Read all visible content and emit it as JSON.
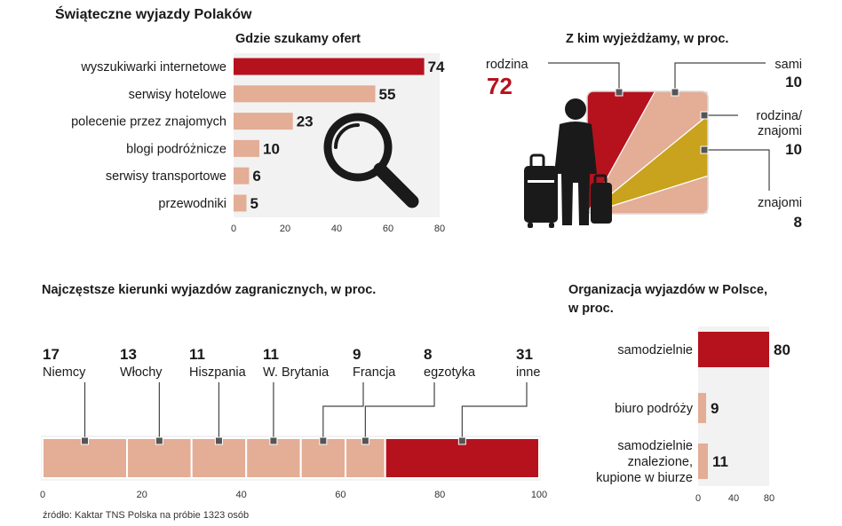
{
  "title": "Świąteczne wyjazdy Polaków",
  "source": "źródło: Kaktar TNS Polska na próbie 1323 osób",
  "colors": {
    "red": "#b5121e",
    "salmon": "#e3ad96",
    "gold": "#c9a21e",
    "panel": "#f2f2f2",
    "dark": "#1a1a1a"
  },
  "icons": [
    "magnifier-icon",
    "traveler-icon",
    "suitcase-icon"
  ],
  "chart_data": [
    {
      "type": "bar",
      "title": "Gdzie szukamy ofert",
      "categories": [
        "wyszukiwarki internetowe",
        "serwisy hotelowe",
        "polecenie przez znajomych",
        "blogi podróżnicze",
        "serwisy transportowe",
        "przewodniki"
      ],
      "values": [
        74,
        55,
        23,
        10,
        6,
        5
      ],
      "value_labels": [
        "74",
        "55",
        "23",
        "10",
        "6",
        "5"
      ],
      "xlim": [
        0,
        80
      ],
      "xticks": [
        "0",
        "20",
        "40",
        "60",
        "80"
      ]
    },
    {
      "type": "pie",
      "title": "Z kim wyjeżdżamy, w proc.",
      "slices": [
        {
          "label": "rodzina",
          "value": 72,
          "display": "72"
        },
        {
          "label": "sami",
          "value": 10,
          "display": "10"
        },
        {
          "label": "rodzina/\nznajomi",
          "value": 10,
          "display": "10"
        },
        {
          "label": "znajomi",
          "value": 8,
          "display": "8"
        }
      ]
    },
    {
      "type": "bar",
      "stacked": true,
      "title": "Najczęstsze kierunki wyjazdów zagranicznych, w proc.",
      "segments": [
        {
          "label": "Niemcy",
          "value": 17,
          "display": "17"
        },
        {
          "label": "Włochy",
          "value": 13,
          "display": "13"
        },
        {
          "label": "Hiszpania",
          "value": 11,
          "display": "11"
        },
        {
          "label": "W. Brytania",
          "value": 11,
          "display": "11"
        },
        {
          "label": "Francja",
          "value": 9,
          "display": "9"
        },
        {
          "label": "egzotyka",
          "value": 8,
          "display": "8"
        },
        {
          "label": "inne",
          "value": 31,
          "display": "31"
        }
      ],
      "xlim": [
        0,
        100
      ],
      "xticks": [
        "0",
        "20",
        "40",
        "60",
        "80",
        "100"
      ]
    },
    {
      "type": "bar",
      "title": "Organizacja wyjazdów w Polsce,\nw proc.",
      "categories": [
        "samodzielnie",
        "biuro podróży",
        "samodzielnie\nznalezione,\nkupione w biurze"
      ],
      "values": [
        80,
        9,
        11
      ],
      "value_labels": [
        "80",
        "9",
        "11"
      ],
      "xlim": [
        0,
        80
      ],
      "xticks": [
        "0",
        "40",
        "80"
      ]
    }
  ]
}
